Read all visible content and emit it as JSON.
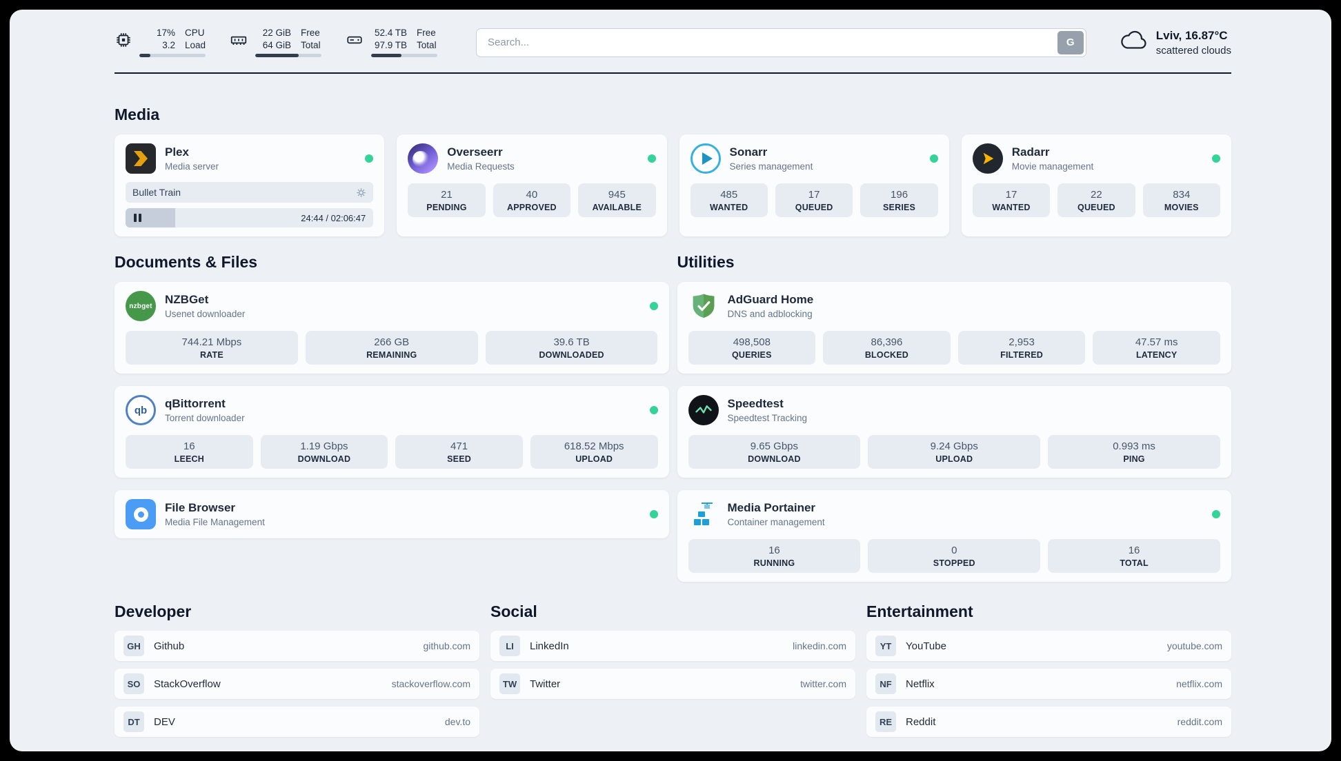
{
  "colors": {
    "page_background": "#edf1f6",
    "card_background": "#fbfcfe",
    "tile_background": "#e7ecf2",
    "status_online": "#34d399",
    "text_dark": "#1e293b",
    "text_gray": "#64748b",
    "bar_fill": "#323d4f",
    "plex_amber": "#e5a00d"
  },
  "header": {
    "cpu": {
      "icon": "cpu-icon",
      "value_top": "17%",
      "value_bottom": "3.2",
      "label_top": "CPU",
      "label_bottom": "Load",
      "progress": 17
    },
    "ram": {
      "icon": "ram-icon",
      "value_top": "22 GiB",
      "value_bottom": "64 GiB",
      "label_top": "Free",
      "label_bottom": "Total",
      "progress": 66
    },
    "disk": {
      "icon": "disk-icon",
      "value_top": "52.4 TB",
      "value_bottom": "97.9 TB",
      "label_top": "Free",
      "label_bottom": "Total",
      "progress": 46
    },
    "search": {
      "placeholder": "Search...",
      "button_label": "G"
    },
    "weather": {
      "icon": "cloud-icon",
      "location": "Lviv, 16.87°C",
      "condition": "scattered clouds"
    }
  },
  "sections": {
    "media": {
      "title": "Media",
      "cards": [
        {
          "icon": "plex-icon",
          "name": "Plex",
          "subtitle": "Media server",
          "online": true,
          "now_playing": {
            "title": "Bullet Train",
            "time": "24:44 / 02:06:47",
            "progress": 20
          }
        },
        {
          "icon": "overseerr-icon",
          "name": "Overseerr",
          "subtitle": "Media Requests",
          "online": true,
          "stats": [
            {
              "value": "21",
              "label": "PENDING"
            },
            {
              "value": "40",
              "label": "APPROVED"
            },
            {
              "value": "945",
              "label": "AVAILABLE"
            }
          ]
        },
        {
          "icon": "sonarr-icon",
          "name": "Sonarr",
          "subtitle": "Series management",
          "online": true,
          "stats": [
            {
              "value": "485",
              "label": "WANTED"
            },
            {
              "value": "17",
              "label": "QUEUED"
            },
            {
              "value": "196",
              "label": "SERIES"
            }
          ]
        },
        {
          "icon": "radarr-icon",
          "name": "Radarr",
          "subtitle": "Movie management",
          "online": true,
          "stats": [
            {
              "value": "17",
              "label": "WANTED"
            },
            {
              "value": "22",
              "label": "QUEUED"
            },
            {
              "value": "834",
              "label": "MOVIES"
            }
          ]
        }
      ]
    },
    "documents": {
      "title": "Documents & Files",
      "cards": [
        {
          "icon": "nzbget-icon",
          "icon_text": "nzbget",
          "name": "NZBGet",
          "subtitle": "Usenet downloader",
          "online": true,
          "stats": [
            {
              "value": "744.21 Mbps",
              "label": "RATE"
            },
            {
              "value": "266 GB",
              "label": "REMAINING"
            },
            {
              "value": "39.6 TB",
              "label": "DOWNLOADED"
            }
          ]
        },
        {
          "icon": "qbittorrent-icon",
          "icon_text": "qb",
          "name": "qBittorrent",
          "subtitle": "Torrent downloader",
          "online": true,
          "stats": [
            {
              "value": "16",
              "label": "LEECH"
            },
            {
              "value": "1.19 Gbps",
              "label": "DOWNLOAD"
            },
            {
              "value": "471",
              "label": "SEED"
            },
            {
              "value": "618.52 Mbps",
              "label": "UPLOAD"
            }
          ]
        },
        {
          "icon": "filebrowser-icon",
          "name": "File Browser",
          "subtitle": "Media File Management",
          "online": true
        }
      ]
    },
    "utilities": {
      "title": "Utilities",
      "cards": [
        {
          "icon": "adguard-icon",
          "name": "AdGuard Home",
          "subtitle": "DNS and adblocking",
          "online": false,
          "stats": [
            {
              "value": "498,508",
              "label": "QUERIES"
            },
            {
              "value": "86,396",
              "label": "BLOCKED"
            },
            {
              "value": "2,953",
              "label": "FILTERED"
            },
            {
              "value": "47.57 ms",
              "label": "LATENCY"
            }
          ]
        },
        {
          "icon": "speedtest-icon",
          "name": "Speedtest",
          "subtitle": "Speedtest Tracking",
          "online": false,
          "stats": [
            {
              "value": "9.65 Gbps",
              "label": "DOWNLOAD"
            },
            {
              "value": "9.24 Gbps",
              "label": "UPLOAD"
            },
            {
              "value": "0.993 ms",
              "label": "PING"
            }
          ]
        },
        {
          "icon": "portainer-icon",
          "name": "Media Portainer",
          "subtitle": "Container management",
          "online": true,
          "stats": [
            {
              "value": "16",
              "label": "RUNNING"
            },
            {
              "value": "0",
              "label": "STOPPED"
            },
            {
              "value": "16",
              "label": "TOTAL"
            }
          ]
        }
      ]
    },
    "bookmarks": [
      {
        "title": "Developer",
        "items": [
          {
            "abbr": "GH",
            "name": "Github",
            "domain": "github.com"
          },
          {
            "abbr": "SO",
            "name": "StackOverflow",
            "domain": "stackoverflow.com"
          },
          {
            "abbr": "DT",
            "name": "DEV",
            "domain": "dev.to"
          }
        ]
      },
      {
        "title": "Social",
        "items": [
          {
            "abbr": "LI",
            "name": "LinkedIn",
            "domain": "linkedin.com"
          },
          {
            "abbr": "TW",
            "name": "Twitter",
            "domain": "twitter.com"
          }
        ]
      },
      {
        "title": "Entertainment",
        "items": [
          {
            "abbr": "YT",
            "name": "YouTube",
            "domain": "youtube.com"
          },
          {
            "abbr": "NF",
            "name": "Netflix",
            "domain": "netflix.com"
          },
          {
            "abbr": "RE",
            "name": "Reddit",
            "domain": "reddit.com"
          }
        ]
      }
    ]
  }
}
